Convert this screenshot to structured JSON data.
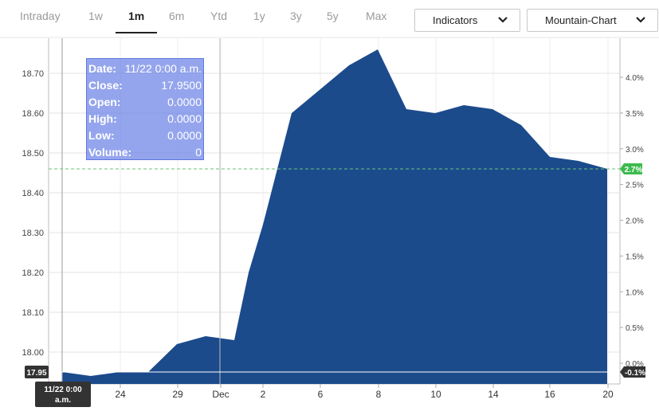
{
  "tabs": [
    {
      "label": "Intraday",
      "active": false
    },
    {
      "label": "1w",
      "active": false
    },
    {
      "label": "1m",
      "active": true
    },
    {
      "label": "6m",
      "active": false
    },
    {
      "label": "Ytd",
      "active": false
    },
    {
      "label": "1y",
      "active": false
    },
    {
      "label": "3y",
      "active": false
    },
    {
      "label": "5y",
      "active": false
    },
    {
      "label": "Max",
      "active": false
    }
  ],
  "controls": {
    "indicators_label": "Indicators",
    "chart_type_label": "Mountain-Chart"
  },
  "tooltip": {
    "rows": [
      {
        "k": "Date:",
        "v": "11/22 0:00 a.m."
      },
      {
        "k": "Close:",
        "v": "17.9500"
      },
      {
        "k": "Open:",
        "v": "0.0000"
      },
      {
        "k": "High:",
        "v": "0.0000"
      },
      {
        "k": "Low:",
        "v": "0.0000"
      },
      {
        "k": "Volume:",
        "v": "0"
      }
    ]
  },
  "colors": {
    "area": "#1c4b8c",
    "last_badge": "#3dbb4f",
    "crosshair_badge": "#333333"
  },
  "chart_data": {
    "type": "area",
    "x_ticks": [
      "24",
      "29",
      "Dec",
      "2",
      "6",
      "8",
      "10",
      "14",
      "16",
      "20"
    ],
    "left_ticks": [
      "18.70",
      "18.60",
      "18.50",
      "18.40",
      "18.30",
      "18.20",
      "18.10",
      "18.00"
    ],
    "right_ticks": [
      "4.0%",
      "3.5%",
      "3.0%",
      "2.5%",
      "2.0%",
      "1.5%",
      "1.0%",
      "0.5%",
      "0.0%"
    ],
    "ylim": [
      17.92,
      18.8
    ],
    "x_domain": [
      0,
      28
    ],
    "points": [
      {
        "d": 0,
        "v": 17.95
      },
      {
        "d": 1,
        "v": 17.94
      },
      {
        "d": 2,
        "v": 17.95
      },
      {
        "d": 3,
        "v": 17.95
      },
      {
        "d": 4,
        "v": 18.02
      },
      {
        "d": 5,
        "v": 18.04
      },
      {
        "d": 6,
        "v": 18.03
      },
      {
        "d": 6.5,
        "v": 18.2
      },
      {
        "d": 7,
        "v": 18.32
      },
      {
        "d": 8,
        "v": 18.6
      },
      {
        "d": 9,
        "v": 18.66
      },
      {
        "d": 10,
        "v": 18.72
      },
      {
        "d": 11,
        "v": 18.76
      },
      {
        "d": 12,
        "v": 18.61
      },
      {
        "d": 13,
        "v": 18.6
      },
      {
        "d": 14,
        "v": 18.62
      },
      {
        "d": 15,
        "v": 18.61
      },
      {
        "d": 16,
        "v": 18.57
      },
      {
        "d": 17,
        "v": 18.49
      },
      {
        "d": 18,
        "v": 18.48
      },
      {
        "d": 19,
        "v": 18.46
      }
    ],
    "last_value": 18.46,
    "last_badge": "2.7%",
    "crosshair_value": 17.95,
    "crosshair_badge_left": "17.95",
    "crosshair_badge_right": "-0.1%",
    "crosshair_date": "11/22 0:00 a.m."
  }
}
